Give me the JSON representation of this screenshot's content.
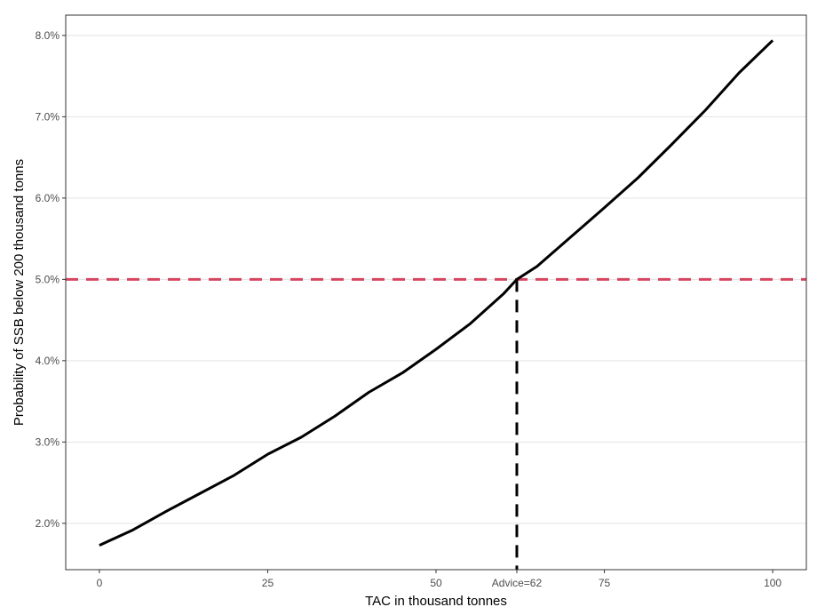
{
  "chart_data": {
    "type": "line",
    "title": "",
    "xlabel": "TAC in thousand tonnes",
    "ylabel": "Probability of SSB below 200 thousand tonns",
    "xlim": [
      -5,
      105
    ],
    "ylim": [
      1.43,
      8.25
    ],
    "grid": "horizontal major",
    "x_ticks": [
      {
        "value": 0,
        "label": "0"
      },
      {
        "value": 25,
        "label": "25"
      },
      {
        "value": 50,
        "label": "50"
      },
      {
        "value": 62,
        "label": "Advice=62"
      },
      {
        "value": 75,
        "label": "75"
      },
      {
        "value": 100,
        "label": "100"
      }
    ],
    "y_ticks": [
      {
        "value": 2,
        "label": "2.0%"
      },
      {
        "value": 3,
        "label": "3.0%"
      },
      {
        "value": 4,
        "label": "4.0%"
      },
      {
        "value": 5,
        "label": "5.0%"
      },
      {
        "value": 6,
        "label": "6.0%"
      },
      {
        "value": 7,
        "label": "7.0%"
      },
      {
        "value": 8,
        "label": "8.0%"
      }
    ],
    "series": [
      {
        "color": "#000000",
        "x": [
          0,
          5,
          10,
          15,
          20,
          25,
          30,
          35,
          40,
          45,
          50,
          55,
          60,
          62,
          65,
          70,
          75,
          80,
          85,
          90,
          95,
          100
        ],
        "y": [
          1.73,
          1.92,
          2.15,
          2.37,
          2.59,
          2.85,
          3.06,
          3.32,
          3.61,
          3.85,
          4.14,
          4.45,
          4.82,
          5.0,
          5.16,
          5.52,
          5.88,
          6.25,
          6.66,
          7.08,
          7.54,
          7.94
        ]
      }
    ],
    "reference_lines": [
      {
        "orientation": "horizontal",
        "value": 5.0,
        "color": "#d6455f",
        "style": "dashed"
      },
      {
        "orientation": "vertical",
        "value": 62,
        "color": "#000000",
        "style": "dashed",
        "to_y": 5.0
      }
    ]
  }
}
